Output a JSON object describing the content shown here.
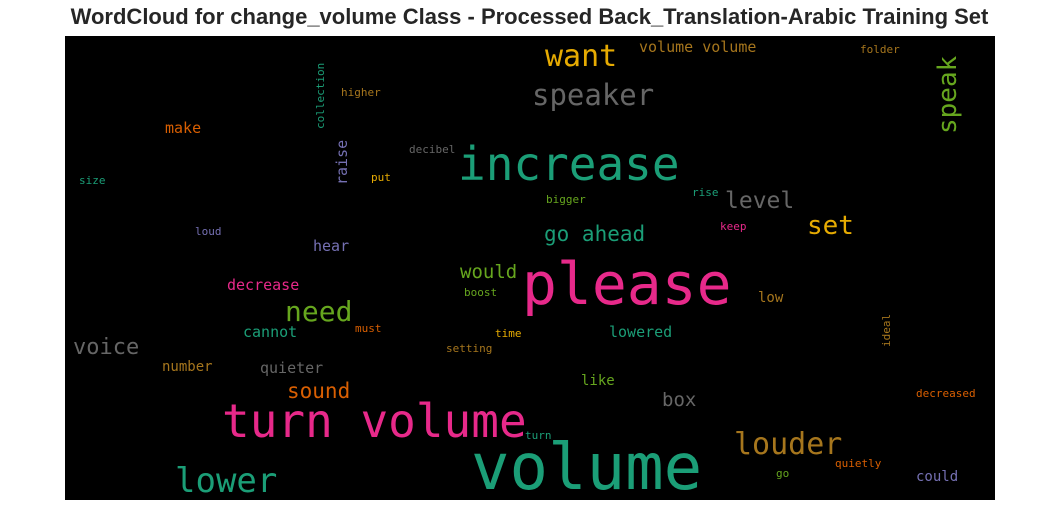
{
  "title": "WordCloud for change_volume Class - Processed Back_Translation-Arabic Training Set",
  "colors": {
    "background": "#000000",
    "green": "#1b9e77",
    "orange": "#d95f02",
    "purple": "#7570b3",
    "pink": "#e7298a",
    "lime": "#66a61e",
    "gold": "#e6ab02",
    "brown": "#a6761d",
    "gray": "#666666"
  },
  "words": {
    "volume": "volume",
    "please": "please",
    "turn_volume": "turn volume",
    "increase": "increase",
    "lower": "lower",
    "louder": "louder",
    "speaker": "speaker",
    "want": "want",
    "speak": "speak",
    "need": "need",
    "set": "set",
    "go_ahead": "go ahead",
    "level": "level",
    "voice": "voice",
    "sound": "sound",
    "would": "would",
    "box": "box",
    "volume_volume": "volume volume",
    "make": "make",
    "raise": "raise",
    "hear": "hear",
    "decrease": "decrease",
    "cannot": "cannot",
    "quieter": "quieter",
    "lowered": "lowered",
    "number": "number",
    "like": "like",
    "low": "low",
    "could": "could",
    "decibel": "decibel",
    "higher": "higher",
    "collection": "collection",
    "folder": "folder",
    "size": "size",
    "put": "put",
    "bigger": "bigger",
    "rise": "rise",
    "loud": "loud",
    "keep": "keep",
    "boost": "boost",
    "must": "must",
    "time": "time",
    "setting": "setting",
    "ideal": "ideal",
    "decreased": "decreased",
    "turn": "turn",
    "quietly": "quietly",
    "go": "go"
  }
}
